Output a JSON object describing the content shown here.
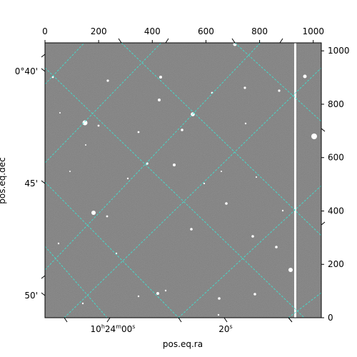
{
  "chart_data": {
    "type": "image",
    "xlabel": "pos.eq.ra",
    "ylabel": "pos.eq.dec",
    "pixel_axes": {
      "x": {
        "range": [
          0,
          1030
        ],
        "ticks": [
          "0",
          "200",
          "400",
          "600",
          "800",
          "1000"
        ],
        "tick_values": [
          0,
          200,
          400,
          600,
          800,
          1000
        ]
      },
      "y": {
        "range": [
          0,
          1030
        ],
        "ticks": [
          "0",
          "200",
          "400",
          "600",
          "800",
          "1000"
        ],
        "tick_values": [
          0,
          200,
          400,
          600,
          800,
          1000
        ]
      }
    },
    "ra_ticks": [
      {
        "label_h": "10",
        "label_h_unit": "h",
        "label_m": "24",
        "label_m_unit": "m",
        "label_s": "00",
        "label_s_unit": "s"
      },
      {
        "label_s": "20",
        "label_s_unit": "s"
      }
    ],
    "dec_ticks": [
      "0°40'",
      "45'",
      "50'"
    ],
    "grid": true,
    "grid_color": "#40e0d0",
    "image_colormap": "gray"
  }
}
